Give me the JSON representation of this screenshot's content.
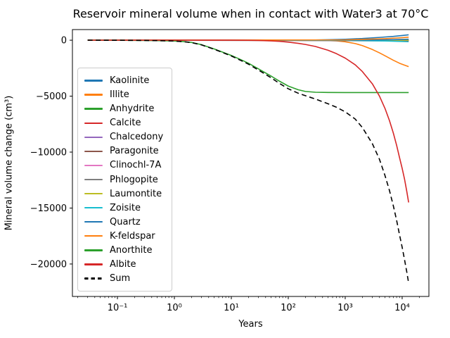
{
  "chart_data": {
    "type": "line",
    "title": "Reservoir mineral volume when in contact with Water3 at 70°C",
    "xlabel": "Years",
    "ylabel": "Mineral volume change (cm³)",
    "x_scale": "log",
    "xlim": [
      0.0162,
      29500
    ],
    "ylim": [
      -22900,
      950
    ],
    "grid": false,
    "legend_position": "upper-left-inside",
    "x_ticks": [
      {
        "v": 0.1,
        "label": "10⁻¹"
      },
      {
        "v": 1,
        "label": "10⁰"
      },
      {
        "v": 10,
        "label": "10¹"
      },
      {
        "v": 100,
        "label": "10²"
      },
      {
        "v": 1000,
        "label": "10³"
      },
      {
        "v": 10000,
        "label": "10⁴"
      }
    ],
    "y_ticks": [
      {
        "v": 0,
        "label": "0"
      },
      {
        "v": -5000,
        "label": "−5000"
      },
      {
        "v": -10000,
        "label": "−10000"
      },
      {
        "v": -15000,
        "label": "−15000"
      },
      {
        "v": -20000,
        "label": "−20000"
      }
    ],
    "series": [
      {
        "name": "Kaolinite",
        "color": "#1f77b4",
        "style": "solid",
        "points": [
          [
            0.03,
            0
          ],
          [
            100,
            0
          ],
          [
            300,
            20
          ],
          [
            500,
            45
          ],
          [
            1000,
            85
          ],
          [
            2000,
            150
          ],
          [
            4000,
            250
          ],
          [
            7000,
            340
          ],
          [
            10000,
            420
          ],
          [
            13000,
            480
          ]
        ]
      },
      {
        "name": "Illite",
        "color": "#ff7f0e",
        "style": "solid",
        "points": [
          [
            0.03,
            0
          ],
          [
            300,
            0
          ],
          [
            500,
            -30
          ],
          [
            700,
            -60
          ],
          [
            1000,
            -140
          ],
          [
            1500,
            -300
          ],
          [
            2000,
            -480
          ],
          [
            3000,
            -830
          ],
          [
            4000,
            -1130
          ],
          [
            5000,
            -1390
          ],
          [
            7000,
            -1790
          ],
          [
            9000,
            -2060
          ],
          [
            11000,
            -2230
          ],
          [
            13000,
            -2360
          ]
        ]
      },
      {
        "name": "Anhydrite",
        "color": "#2ca02c",
        "style": "solid",
        "points": [
          [
            0.03,
            0
          ],
          [
            13000,
            0
          ]
        ]
      },
      {
        "name": "Calcite",
        "color": "#d62728",
        "style": "solid",
        "points": [
          [
            0.03,
            0
          ],
          [
            1,
            -5
          ],
          [
            10,
            -15
          ],
          [
            100,
            -25
          ],
          [
            1000,
            -40
          ],
          [
            13000,
            -60
          ]
        ]
      },
      {
        "name": "Chalcedony",
        "color": "#9467bd",
        "style": "solid",
        "points": [
          [
            0.03,
            0
          ],
          [
            13000,
            0
          ]
        ]
      },
      {
        "name": "Paragonite",
        "color": "#8c564b",
        "style": "solid",
        "points": [
          [
            0.03,
            0
          ],
          [
            13000,
            0
          ]
        ]
      },
      {
        "name": "Clinochl-7A",
        "color": "#e377c2",
        "style": "solid",
        "points": [
          [
            0.03,
            0
          ],
          [
            13000,
            0
          ]
        ]
      },
      {
        "name": "Phlogopite",
        "color": "#7f7f7f",
        "style": "solid",
        "points": [
          [
            0.03,
            0
          ],
          [
            13000,
            0
          ]
        ]
      },
      {
        "name": "Laumontite",
        "color": "#bcbd22",
        "style": "solid",
        "points": [
          [
            0.03,
            0
          ],
          [
            13000,
            0
          ]
        ]
      },
      {
        "name": "Zoisite",
        "color": "#17becf",
        "style": "solid",
        "points": [
          [
            0.03,
            0
          ],
          [
            1000,
            -20
          ],
          [
            5000,
            -70
          ],
          [
            13000,
            -130
          ]
        ]
      },
      {
        "name": "Quartz",
        "color": "#1f77b4",
        "style": "solid",
        "points": [
          [
            0.03,
            0
          ],
          [
            2000,
            20
          ],
          [
            7000,
            50
          ],
          [
            13000,
            90
          ]
        ]
      },
      {
        "name": "K-feldspar",
        "color": "#ff7f0e",
        "style": "solid",
        "points": [
          [
            0.03,
            0
          ],
          [
            1000,
            30
          ],
          [
            2000,
            70
          ],
          [
            5000,
            140
          ],
          [
            9000,
            210
          ],
          [
            13000,
            270
          ]
        ]
      },
      {
        "name": "Anorthite",
        "color": "#2ca02c",
        "style": "solid",
        "points": [
          [
            0.03,
            0
          ],
          [
            0.1,
            -5
          ],
          [
            0.3,
            -20
          ],
          [
            0.5,
            -35
          ],
          [
            1,
            -70
          ],
          [
            1.5,
            -130
          ],
          [
            2,
            -200
          ],
          [
            3,
            -400
          ],
          [
            5,
            -780
          ],
          [
            7,
            -1060
          ],
          [
            10,
            -1360
          ],
          [
            15,
            -1760
          ],
          [
            20,
            -2060
          ],
          [
            30,
            -2560
          ],
          [
            50,
            -3210
          ],
          [
            70,
            -3660
          ],
          [
            100,
            -4100
          ],
          [
            150,
            -4430
          ],
          [
            200,
            -4580
          ],
          [
            300,
            -4650
          ],
          [
            500,
            -4670
          ],
          [
            1000,
            -4675
          ],
          [
            13000,
            -4680
          ]
        ]
      },
      {
        "name": "Albite",
        "color": "#d62728",
        "style": "solid",
        "points": [
          [
            0.03,
            0
          ],
          [
            10,
            0
          ],
          [
            20,
            -10
          ],
          [
            30,
            -25
          ],
          [
            50,
            -60
          ],
          [
            70,
            -100
          ],
          [
            100,
            -170
          ],
          [
            150,
            -280
          ],
          [
            200,
            -380
          ],
          [
            300,
            -560
          ],
          [
            500,
            -900
          ],
          [
            700,
            -1200
          ],
          [
            1000,
            -1600
          ],
          [
            1500,
            -2200
          ],
          [
            2000,
            -2800
          ],
          [
            3000,
            -3900
          ],
          [
            4000,
            -5000
          ],
          [
            5000,
            -6100
          ],
          [
            6000,
            -7200
          ],
          [
            7000,
            -8300
          ],
          [
            8000,
            -9400
          ],
          [
            9000,
            -10500
          ],
          [
            10000,
            -11450
          ],
          [
            11000,
            -12400
          ],
          [
            12000,
            -13450
          ],
          [
            13000,
            -14500
          ]
        ]
      },
      {
        "name": "Sum",
        "color": "#000000",
        "style": "dashed",
        "points": [
          [
            0.03,
            0
          ],
          [
            0.1,
            -6
          ],
          [
            0.3,
            -22
          ],
          [
            0.5,
            -40
          ],
          [
            1,
            -75
          ],
          [
            1.5,
            -140
          ],
          [
            2,
            -215
          ],
          [
            3,
            -420
          ],
          [
            5,
            -810
          ],
          [
            7,
            -1100
          ],
          [
            10,
            -1410
          ],
          [
            15,
            -1830
          ],
          [
            20,
            -2140
          ],
          [
            30,
            -2670
          ],
          [
            50,
            -3360
          ],
          [
            70,
            -3860
          ],
          [
            100,
            -4340
          ],
          [
            150,
            -4740
          ],
          [
            200,
            -4960
          ],
          [
            300,
            -5260
          ],
          [
            500,
            -5680
          ],
          [
            700,
            -5990
          ],
          [
            1000,
            -6400
          ],
          [
            1500,
            -7050
          ],
          [
            2000,
            -7800
          ],
          [
            3000,
            -9250
          ],
          [
            4000,
            -10650
          ],
          [
            5000,
            -12100
          ],
          [
            6000,
            -13450
          ],
          [
            7000,
            -14800
          ],
          [
            8000,
            -16100
          ],
          [
            9000,
            -17400
          ],
          [
            10000,
            -18500
          ],
          [
            11000,
            -19600
          ],
          [
            12000,
            -20650
          ],
          [
            13000,
            -21700
          ]
        ]
      }
    ],
    "colors": {
      "axis": "#000000",
      "background": "#ffffff",
      "legend_border": "#cccccc"
    }
  }
}
